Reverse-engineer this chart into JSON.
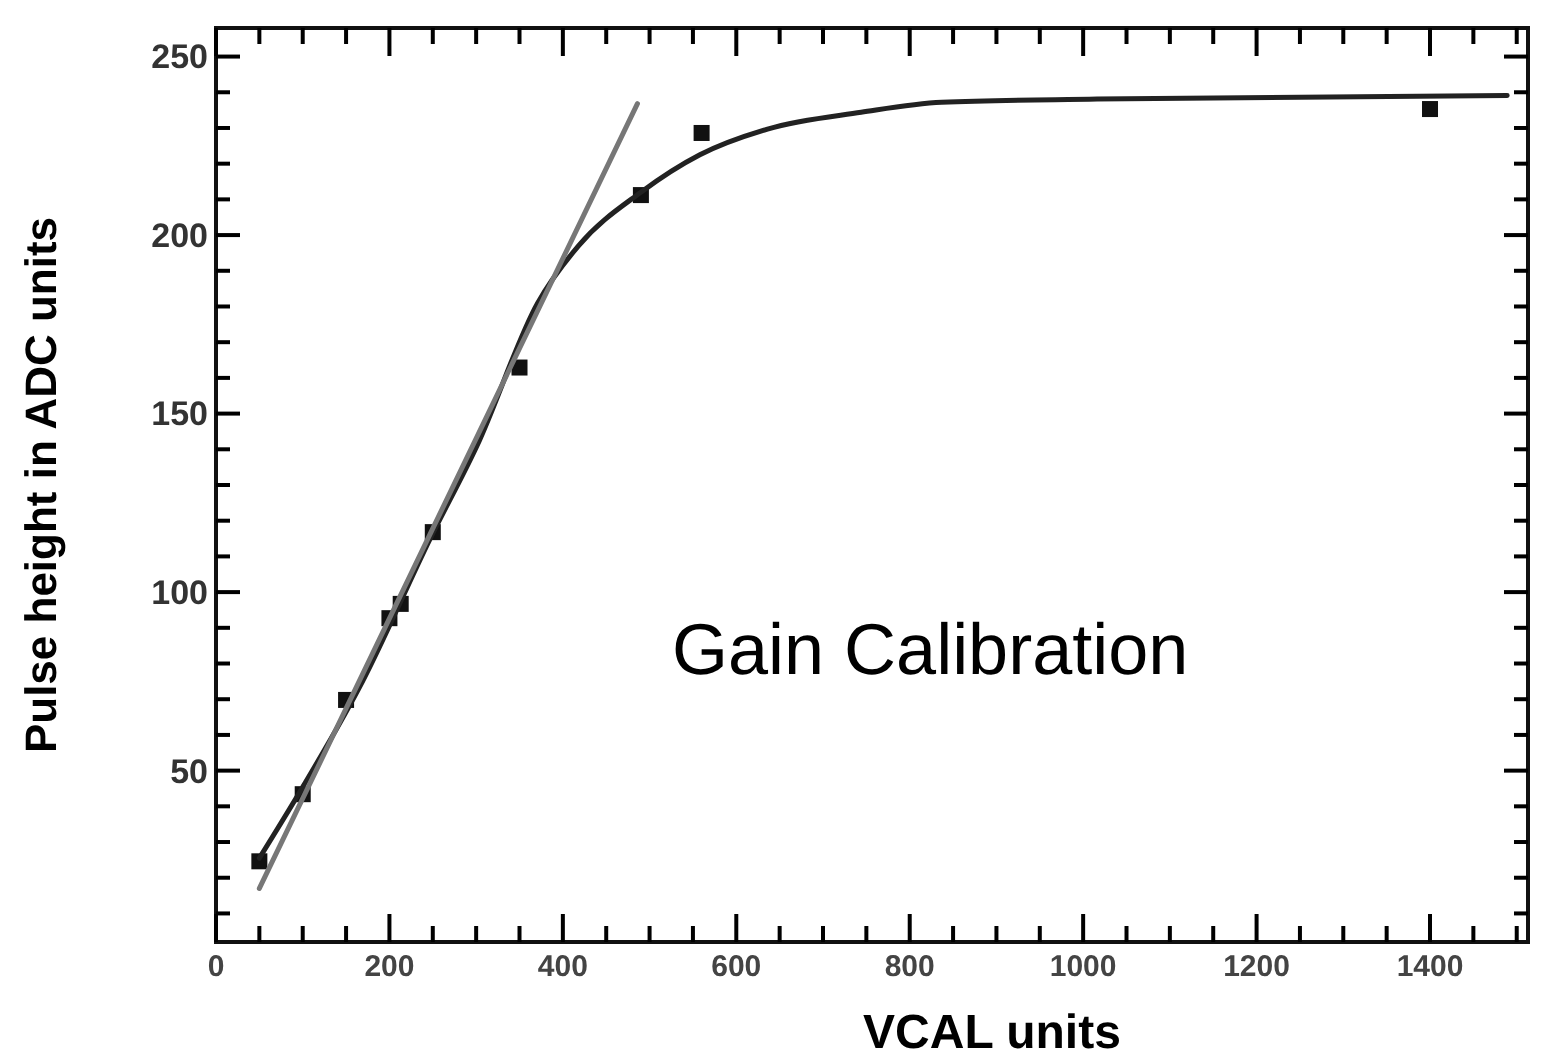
{
  "chart_data": {
    "type": "scatter",
    "xlabel": "VCAL units",
    "ylabel": "Pulse height in ADC units",
    "annotations": [
      "Gain Calibration"
    ],
    "xlim": [
      0,
      1513
    ],
    "ylim": [
      2,
      258
    ],
    "xticks": [
      0,
      {
        "value": 50,
        "label": null
      },
      200,
      {
        "value": 100,
        "label": null
      },
      {
        "value": 150,
        "label": null
      },
      {
        "value": 250,
        "label": null
      },
      {
        "value": 300,
        "label": null
      },
      {
        "value": 350,
        "label": null
      },
      400,
      {
        "value": 450,
        "label": null
      },
      {
        "value": 500,
        "label": null
      },
      {
        "value": 550,
        "label": null
      },
      600,
      {
        "value": 650,
        "label": null
      },
      {
        "value": 700,
        "label": null
      },
      {
        "value": 750,
        "label": null
      },
      800,
      {
        "value": 850,
        "label": null
      },
      {
        "value": 900,
        "label": null
      },
      {
        "value": 950,
        "label": null
      },
      1000,
      {
        "value": 1050,
        "label": null
      },
      {
        "value": 1100,
        "label": null
      },
      {
        "value": 1150,
        "label": null
      },
      1200,
      {
        "value": 1250,
        "label": null
      },
      {
        "value": 1300,
        "label": null
      },
      {
        "value": 1350,
        "label": null
      },
      1400,
      {
        "value": 1450,
        "label": null
      },
      {
        "value": 1500,
        "label": null
      }
    ],
    "yticks": [
      {
        "value": 10,
        "label": null
      },
      {
        "value": 20,
        "label": null
      },
      {
        "value": 30,
        "label": null
      },
      {
        "value": 40,
        "label": null
      },
      50,
      {
        "value": 60,
        "label": null
      },
      {
        "value": 70,
        "label": null
      },
      {
        "value": 80,
        "label": null
      },
      {
        "value": 90,
        "label": null
      },
      100,
      {
        "value": 110,
        "label": null
      },
      {
        "value": 120,
        "label": null
      },
      {
        "value": 130,
        "label": null
      },
      {
        "value": 140,
        "label": null
      },
      150,
      {
        "value": 160,
        "label": null
      },
      {
        "value": 170,
        "label": null
      },
      {
        "value": 180,
        "label": null
      },
      {
        "value": 190,
        "label": null
      },
      200,
      {
        "value": 210,
        "label": null
      },
      {
        "value": 220,
        "label": null
      },
      {
        "value": 230,
        "label": null
      },
      {
        "value": 240,
        "label": null
      },
      250
    ],
    "series": [
      {
        "color": "#111111",
        "marker": "square",
        "x": [
          50,
          100,
          150,
          200,
          213,
          250,
          350,
          490,
          560,
          1400
        ],
        "values": [
          24.6,
          43.4,
          69.8,
          92.7,
          96.7,
          116.8,
          162.9,
          211.2,
          228.6,
          235.3
        ]
      },
      {
        "type": "line",
        "color": "#222222",
        "x": [
          50,
          99,
          169,
          247,
          301,
          371,
          418,
          490,
          558,
          636,
          744,
          837,
          1016,
          1489
        ],
        "values": [
          25.5,
          45,
          75,
          115,
          141,
          181,
          197,
          212,
          222.5,
          229.7,
          234.4,
          237.2,
          238.1,
          239.1
        ]
      },
      {
        "type": "line",
        "color": "#777777",
        "x": [
          50,
          486
        ],
        "values": [
          17,
          236.8
        ]
      }
    ]
  }
}
